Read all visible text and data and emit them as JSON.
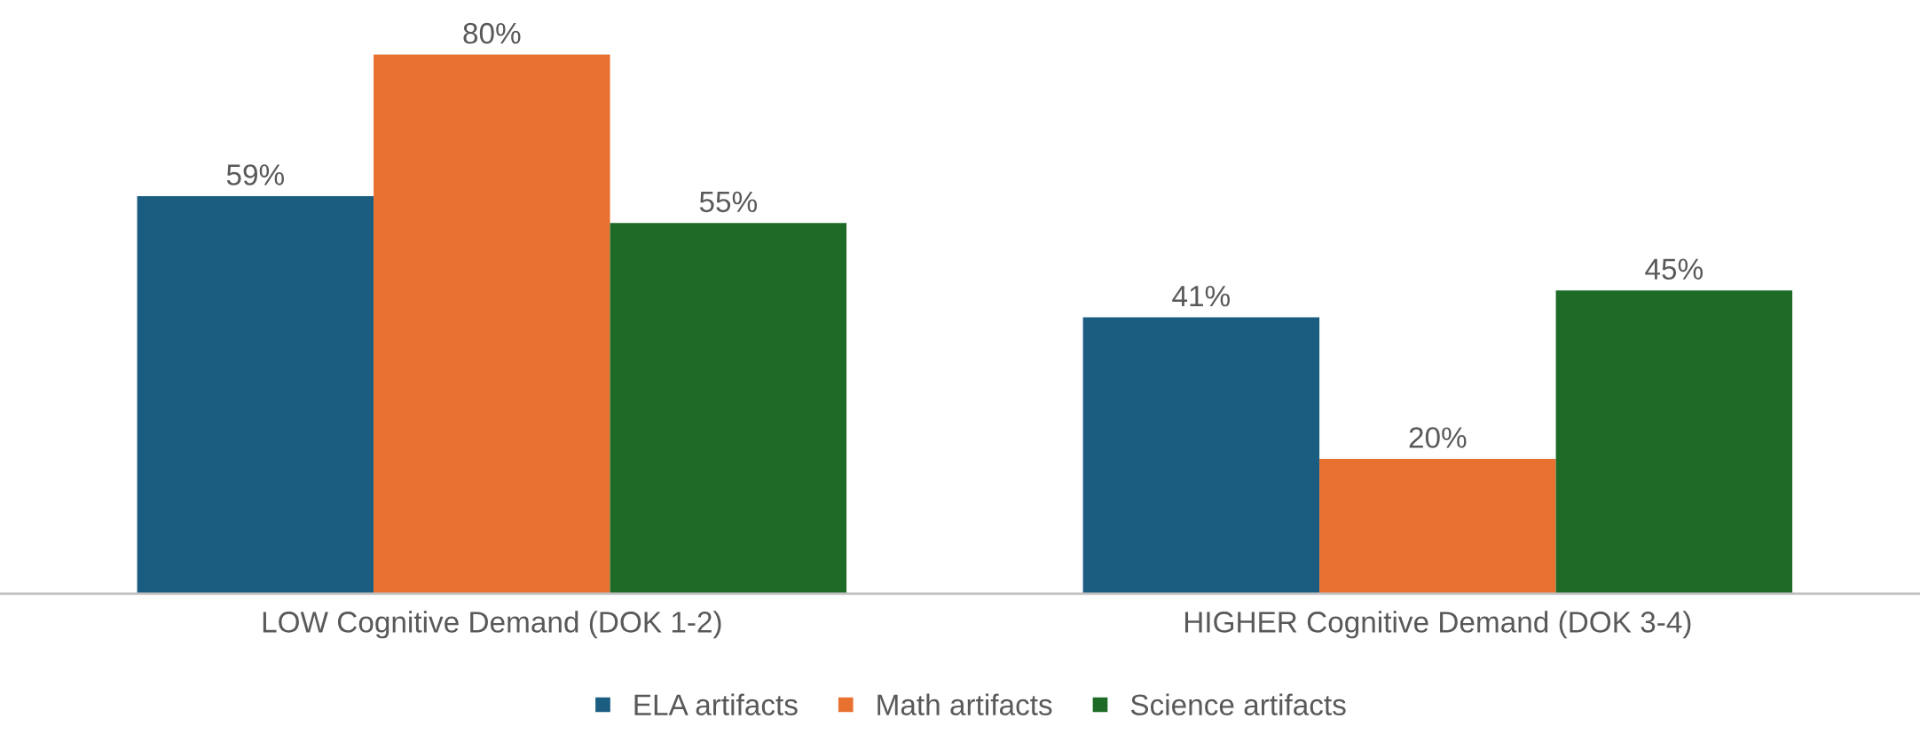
{
  "chart_data": {
    "type": "bar",
    "categories": [
      "LOW Cognitive Demand (DOK 1-2)",
      "HIGHER Cognitive Demand (DOK 3-4)"
    ],
    "series": [
      {
        "name": "ELA artifacts",
        "color": "#1b5d80",
        "values": [
          59,
          41
        ],
        "value_labels": [
          "59%",
          "41%"
        ]
      },
      {
        "name": "Math artifacts",
        "color": "#e87130",
        "values": [
          80,
          20
        ],
        "value_labels": [
          "80%",
          "20%"
        ]
      },
      {
        "name": "Science artifacts",
        "color": "#1e6b27",
        "values": [
          55,
          45
        ],
        "value_labels": [
          "55%",
          "45%"
        ]
      }
    ],
    "legend": "bottom"
  }
}
